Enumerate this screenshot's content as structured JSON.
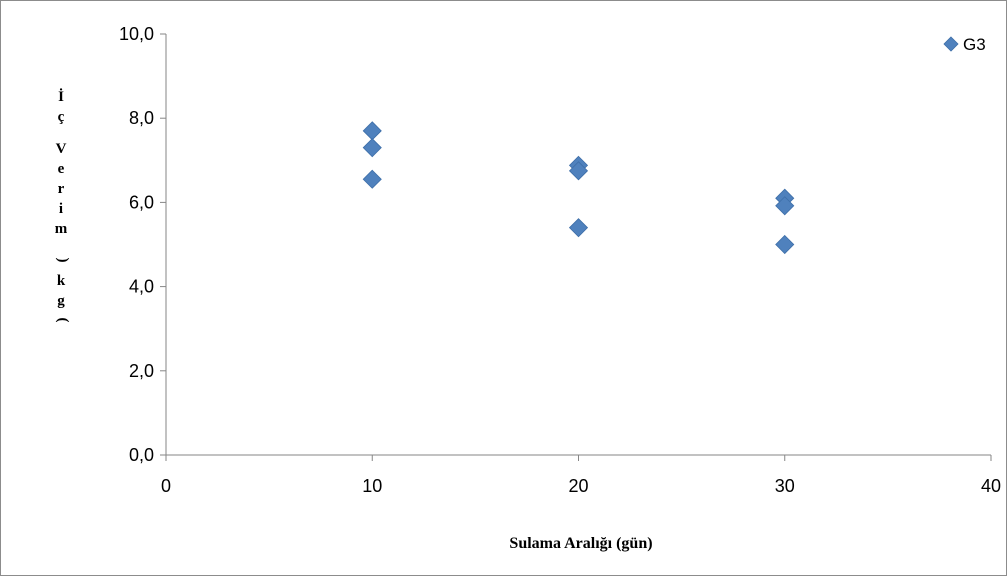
{
  "chart_data": {
    "type": "scatter",
    "title": "",
    "xlabel": "Sulama Aralığı (gün)",
    "ylabel": "İç Verim (kg)",
    "xlim": [
      0,
      40
    ],
    "ylim": [
      0,
      10
    ],
    "x_ticks": [
      "0",
      "10",
      "20",
      "30",
      "40"
    ],
    "y_ticks": [
      "0,0",
      "2,0",
      "4,0",
      "6,0",
      "8,0",
      "10,0"
    ],
    "grid": false,
    "legend_position": "top-right",
    "series": [
      {
        "name": "G3",
        "color": "#4f81bd",
        "marker": "diamond",
        "points": [
          {
            "x": 10,
            "y": 7.7
          },
          {
            "x": 10,
            "y": 7.3
          },
          {
            "x": 10,
            "y": 6.55
          },
          {
            "x": 20,
            "y": 6.88
          },
          {
            "x": 20,
            "y": 6.75
          },
          {
            "x": 20,
            "y": 5.4
          },
          {
            "x": 30,
            "y": 6.1
          },
          {
            "x": 30,
            "y": 5.92
          },
          {
            "x": 30,
            "y": 5.0
          }
        ]
      }
    ]
  }
}
